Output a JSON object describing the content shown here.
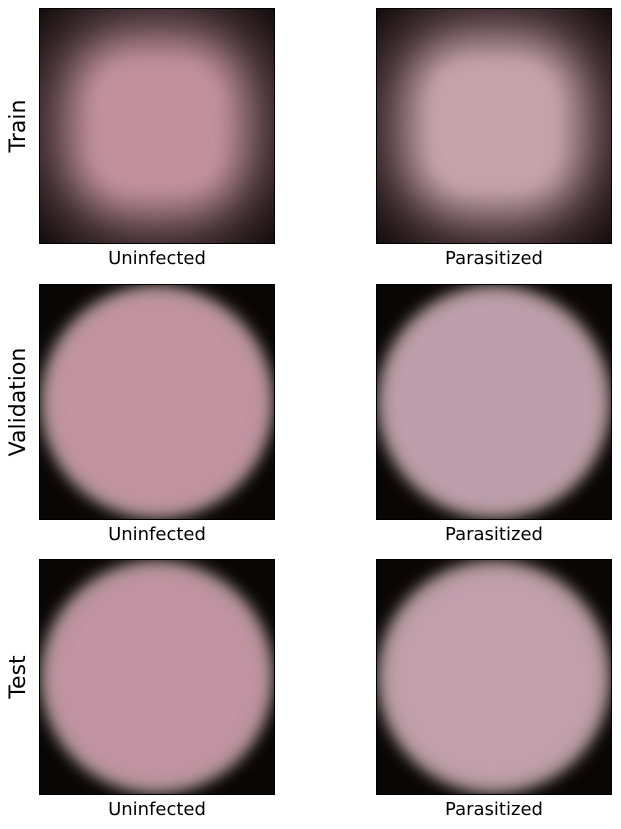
{
  "rows": [
    {
      "label": "Train",
      "panels": [
        {
          "caption": "Uninfected"
        },
        {
          "caption": "Parasitized"
        }
      ]
    },
    {
      "label": "Validation",
      "panels": [
        {
          "caption": "Uninfected"
        },
        {
          "caption": "Parasitized"
        }
      ]
    },
    {
      "label": "Test",
      "panels": [
        {
          "caption": "Uninfected"
        },
        {
          "caption": "Parasitized"
        }
      ]
    }
  ]
}
